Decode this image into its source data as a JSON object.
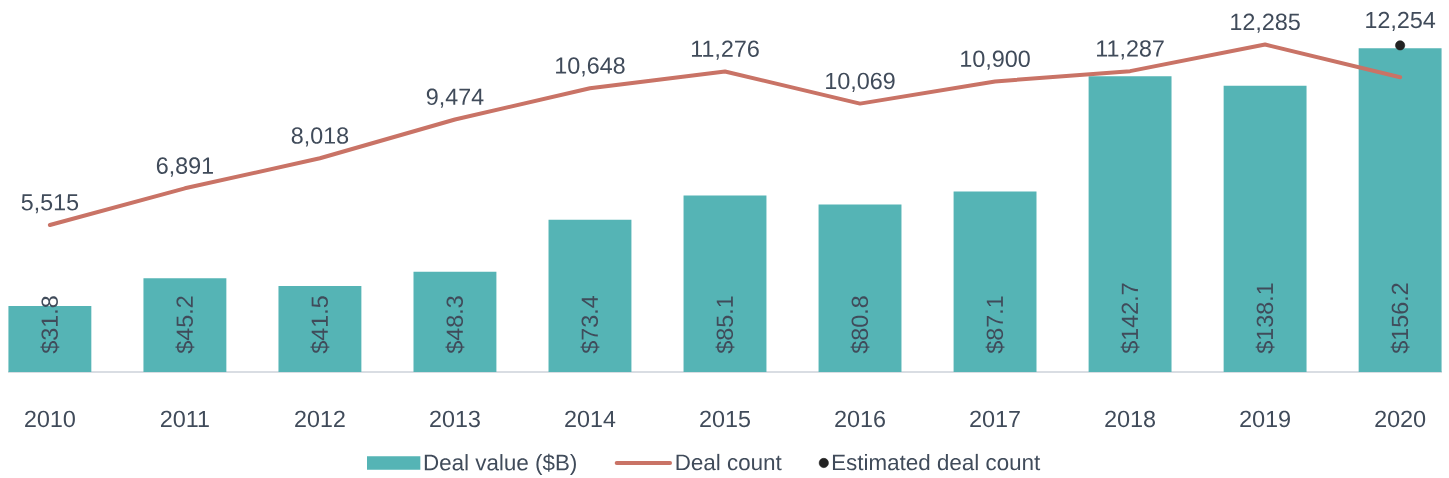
{
  "chart_data": {
    "type": "bar",
    "categories": [
      "2010",
      "2011",
      "2012",
      "2013",
      "2014",
      "2015",
      "2016",
      "2017",
      "2018",
      "2019",
      "2020"
    ],
    "series": [
      {
        "name": "Deal value ($B)",
        "color": "#55b4b5",
        "values": [
          31.8,
          45.2,
          41.5,
          48.3,
          73.4,
          85.1,
          80.8,
          87.1,
          142.7,
          138.1,
          156.2
        ],
        "value_labels": [
          "$31.8",
          "$45.2",
          "$41.5",
          "$48.3",
          "$73.4",
          "$85.1",
          "$80.8",
          "$87.1",
          "$142.7",
          "$138.1",
          "$156.2"
        ]
      },
      {
        "name": "Deal count",
        "type": "line",
        "axis": "y2",
        "color": "#c97366",
        "values": [
          5515,
          6891,
          8018,
          9474,
          10648,
          11276,
          10069,
          10900,
          11287,
          12285,
          11060
        ],
        "value_labels": [
          "5,515",
          "6,891",
          "8,018",
          "9,474",
          "10,648",
          "11,276",
          "10,069",
          "10,900",
          "11,287",
          "12,285",
          null
        ]
      },
      {
        "name": "Estimated deal count",
        "type": "scatter",
        "axis": "y2",
        "color": "#222222",
        "marker": "circle",
        "values": [
          null,
          null,
          null,
          null,
          null,
          null,
          null,
          null,
          null,
          null,
          12254
        ],
        "value_labels": [
          null,
          null,
          null,
          null,
          null,
          null,
          null,
          null,
          null,
          null,
          "12,254"
        ]
      }
    ],
    "tick_labels": "x",
    "legend": "bottom"
  }
}
